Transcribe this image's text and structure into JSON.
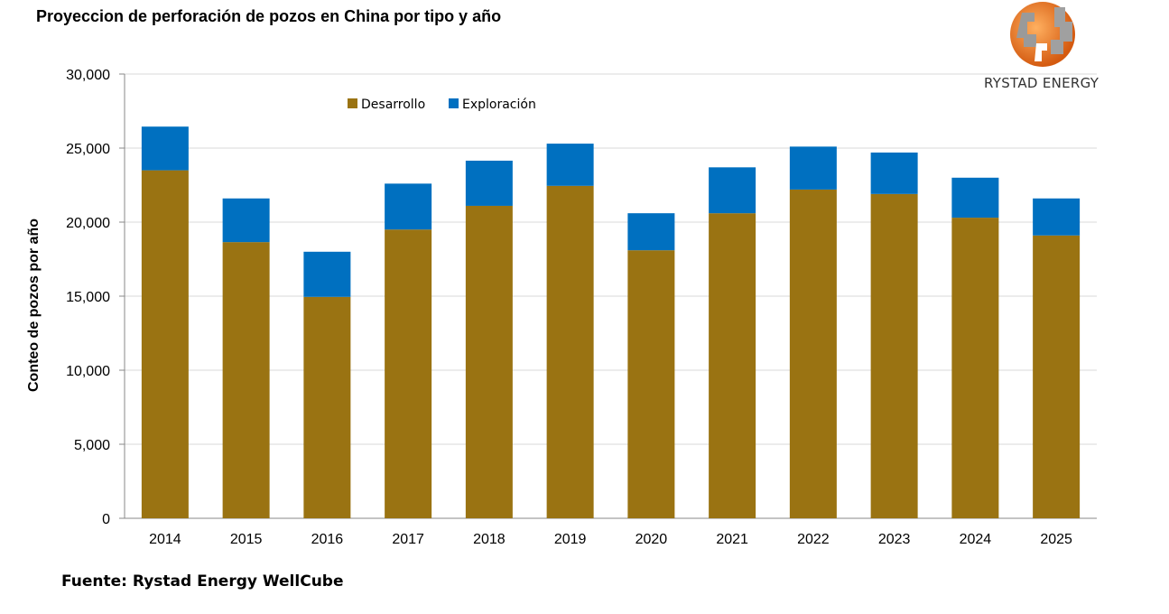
{
  "title": "Proyeccion de perforación de pozos en China por tipo y año",
  "source": "Fuente: Rystad Energy WellCube",
  "logo": {
    "text": "RYSTAD ENERGY"
  },
  "chart_data": {
    "type": "bar",
    "stacked": true,
    "title": "Proyeccion de perforación de pozos en China por tipo y año",
    "xlabel": "",
    "ylabel": "Conteo de pozos por año",
    "ylim": [
      0,
      30000
    ],
    "yticks": [
      "0",
      "5,000",
      "10,000",
      "15,000",
      "20,000",
      "25,000",
      "30,000"
    ],
    "ytick_values": [
      0,
      5000,
      10000,
      15000,
      20000,
      25000,
      30000
    ],
    "grid": true,
    "legend_position": "top-center",
    "categories": [
      "2014",
      "2015",
      "2016",
      "2017",
      "2018",
      "2019",
      "2020",
      "2021",
      "2022",
      "2023",
      "2024",
      "2025"
    ],
    "series": [
      {
        "name": "Desarrollo",
        "color": "#9a7312",
        "values": [
          23500,
          18650,
          14950,
          19500,
          21100,
          22450,
          18100,
          20600,
          22200,
          21900,
          20300,
          19100
        ]
      },
      {
        "name": "Exploración",
        "color": "#0070c0",
        "values": [
          2950,
          2950,
          3050,
          3100,
          3050,
          2850,
          2500,
          3100,
          2900,
          2800,
          2700,
          2500
        ]
      }
    ]
  }
}
